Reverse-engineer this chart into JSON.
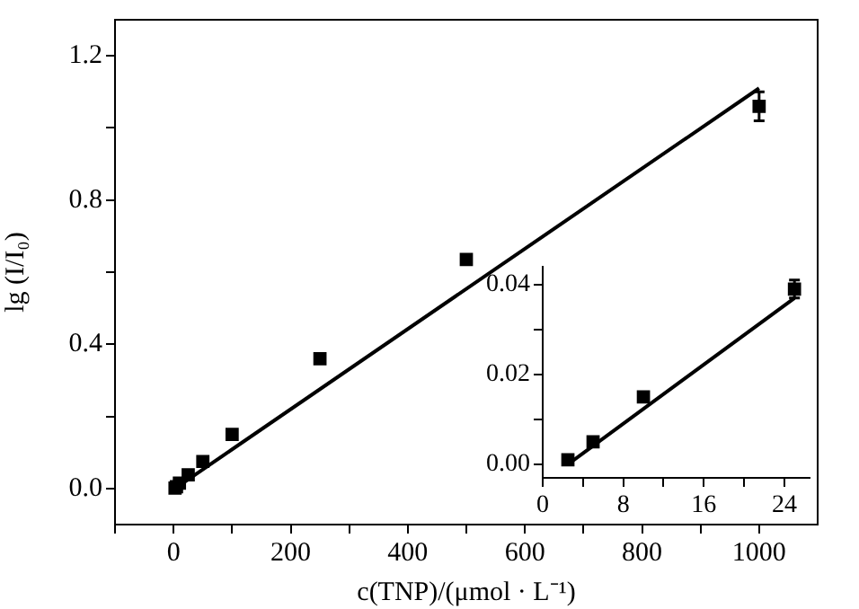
{
  "chart_data": [
    {
      "type": "scatter",
      "xlabel": "c(TNP)/(μmol · L⁻¹)",
      "ylabel": "lg (I/I₀)",
      "grid": false,
      "legend": false,
      "xlim": [
        -100,
        1100
      ],
      "ylim": [
        -0.1,
        1.3
      ],
      "xticks": [
        {
          "value": -100,
          "label": null
        },
        0,
        {
          "value": 100,
          "label": null
        },
        200,
        {
          "value": 300,
          "label": null
        },
        400,
        {
          "value": 500,
          "label": null
        },
        600,
        {
          "value": 700,
          "label": null
        },
        800,
        {
          "value": 900,
          "label": null
        },
        1000
      ],
      "yticks": [
        {
          "value": 0,
          "label": "0.0"
        },
        {
          "value": 0.2,
          "label": null
        },
        0.4,
        {
          "value": 0.6,
          "label": null
        },
        0.8,
        {
          "value": 1.0,
          "label": null
        },
        1.2
      ],
      "series": [
        {
          "marker": "square",
          "color": "#000000",
          "x": [
            2.5,
            5,
            10,
            25,
            50,
            100,
            250,
            500,
            1000
          ],
          "values": [
            0.001,
            0.005,
            0.015,
            0.038,
            0.075,
            0.15,
            0.36,
            0.635,
            1.06
          ],
          "errors": [
            null,
            null,
            null,
            null,
            null,
            null,
            null,
            null,
            0.04
          ]
        },
        {
          "type": "line",
          "marker": "none",
          "color": "#000000",
          "x": [
            2.5,
            1000
          ],
          "values": [
            0.0,
            1.11
          ]
        }
      ]
    },
    {
      "type": "scatter",
      "grid": false,
      "legend": false,
      "xlim": [
        0,
        26.5
      ],
      "ylim": [
        -0.003,
        0.044
      ],
      "xticks": [
        0,
        {
          "value": 4,
          "label": null
        },
        8,
        {
          "value": 12,
          "label": null
        },
        16,
        {
          "value": 20,
          "label": null
        },
        24
      ],
      "yticks": [
        {
          "value": 0,
          "label": "0.00"
        },
        {
          "value": 0.01,
          "label": null
        },
        {
          "value": 0.02,
          "label": "0.02"
        },
        {
          "value": 0.03,
          "label": null
        },
        {
          "value": 0.04,
          "label": "0.04"
        }
      ],
      "series": [
        {
          "marker": "square",
          "color": "#000000",
          "x": [
            2.5,
            5,
            10,
            25
          ],
          "values": [
            0.001,
            0.005,
            0.015,
            0.039
          ],
          "errors": [
            null,
            null,
            null,
            0.002
          ]
        },
        {
          "type": "line",
          "marker": "none",
          "color": "#000000",
          "x": [
            2.5,
            25
          ],
          "values": [
            0.0,
            0.037
          ]
        }
      ]
    }
  ]
}
